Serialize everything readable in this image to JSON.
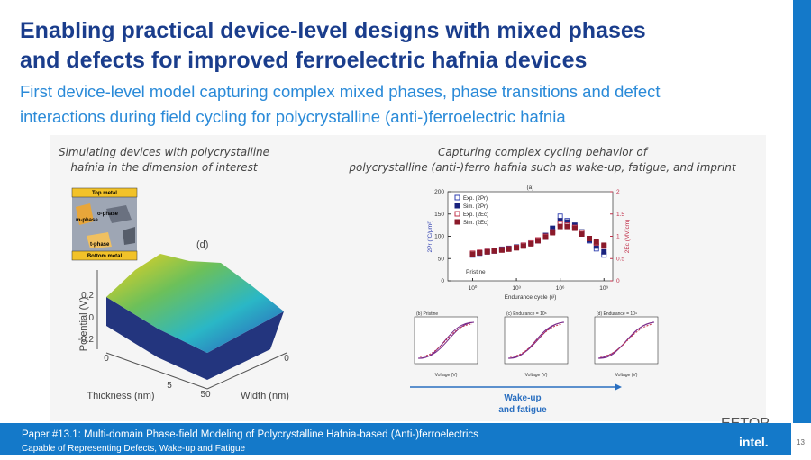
{
  "header": {
    "title_lines": [
      "Enabling practical device-level designs with mixed phases",
      "and defects for improved ferroelectric hafnia devices"
    ],
    "subtitle_lines": [
      "First device-level model capturing complex mixed phases, phase transitions and defect",
      "interactions during field cycling for polycrystalline (anti-)ferroelectric hafnia"
    ]
  },
  "left_panel": {
    "caption_lines": [
      "Simulating devices with polycrystalline",
      "hafnia in the dimension of interest"
    ],
    "inset": {
      "top": "Top metal",
      "o_phase": "o-phase",
      "m_phase": "m-phase",
      "t_phase": "t-phase",
      "bottom": "Bottom metal"
    },
    "surface": {
      "panel_label": "(d)",
      "z_label": "Potential (V)",
      "z_ticks": [
        "0.2",
        "0",
        "-0.2"
      ],
      "thickness_label": "Thickness (nm)",
      "thickness_ticks": [
        "0",
        "5"
      ],
      "width_label": "Width (nm)",
      "width_ticks": [
        "50",
        "0"
      ]
    }
  },
  "right_panel": {
    "caption_lines": [
      "Capturing complex cycling behavior of",
      "polycrystalline (anti-)ferro hafnia such as wake-up, fatigue, and imprint"
    ],
    "endurance_chart": {
      "type": "scatter",
      "panel_label": "(a)",
      "x_label": "Endurance cycle (#)",
      "y_label": "2Pr (fC/μm²)",
      "y2_label": "2Ec (MV/cm)",
      "annotation": "Pristine",
      "log_x": true,
      "x": [
        1,
        3,
        10,
        30,
        100,
        300,
        1000,
        3000,
        10000,
        30000,
        100000,
        300000,
        1000000,
        3000000,
        10000000,
        30000000,
        100000000,
        300000000,
        1000000000
      ],
      "xlim": [
        0.02,
        4000000000
      ],
      "xticks": [
        {
          "value": 1,
          "label": "10⁰"
        },
        {
          "value": 1000,
          "label": "10³"
        },
        {
          "value": 1000000,
          "label": "10⁶"
        },
        {
          "value": 1000000000,
          "label": "10⁹"
        }
      ],
      "ylim": [
        0,
        200
      ],
      "yticks": [
        0,
        50,
        100,
        150,
        200
      ],
      "y2lim": [
        0,
        2
      ],
      "y2ticks": [
        0,
        0.5,
        1,
        1.5,
        2
      ],
      "series": [
        {
          "name": "Exp. (2Pr)",
          "color": "#2f3fb0",
          "marker": "hollow",
          "values": [
            58,
            62,
            65,
            67,
            70,
            72,
            75,
            79,
            84,
            90,
            98,
            110,
            145,
            135,
            120,
            105,
            90,
            72,
            58
          ]
        },
        {
          "name": "Sim. (2Pr)",
          "color": "#1a237e",
          "marker": "filled",
          "values": [
            60,
            63,
            66,
            68,
            71,
            73,
            76,
            80,
            85,
            92,
            102,
            118,
            135,
            132,
            125,
            110,
            92,
            78,
            65
          ]
        },
        {
          "name": "Exp. (2Ec)",
          "color": "#c0304a",
          "marker": "hollow",
          "axis": "y2",
          "values": [
            0.62,
            0.64,
            0.66,
            0.68,
            0.7,
            0.72,
            0.75,
            0.8,
            0.85,
            0.92,
            1.0,
            1.1,
            1.28,
            1.25,
            1.2,
            1.08,
            0.95,
            0.85,
            0.78
          ]
        },
        {
          "name": "Sim. (2Ec)",
          "color": "#8b1a2a",
          "marker": "filled",
          "axis": "y2",
          "values": [
            0.6,
            0.63,
            0.65,
            0.67,
            0.69,
            0.71,
            0.74,
            0.78,
            0.83,
            0.9,
            0.98,
            1.08,
            1.22,
            1.22,
            1.18,
            1.05,
            0.95,
            0.87,
            0.8
          ]
        }
      ]
    },
    "hysteresis": {
      "titles": [
        "(b) Pristine",
        "(c) Endurance = 10⁶",
        "(d) Endurance = 10⁹"
      ],
      "x_label": "Voltage (V)"
    },
    "arrow_label_lines": [
      "Wake-up",
      "and fatigue"
    ]
  },
  "footer": {
    "lines": [
      "Paper #13.1: Multi-domain Phase-field Modeling of Polycrystalline Hafnia-based (Anti-)ferroelectrics",
      "Capable of Representing Defects, Wake-up and Fatigue"
    ],
    "watermark": "EETOP",
    "logo": "intel.",
    "page_number": "13"
  }
}
